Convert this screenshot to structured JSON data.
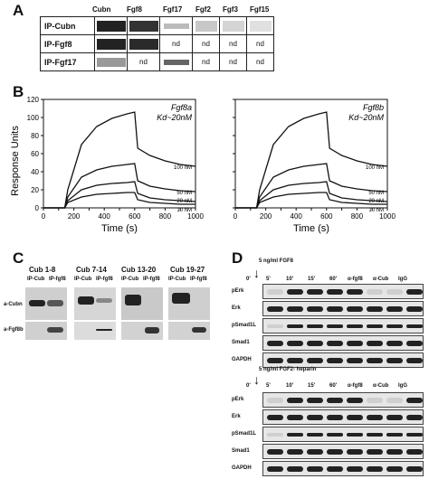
{
  "panelA": {
    "letter": "A",
    "columns": [
      "Cubn",
      "Fgf8",
      "Fgf17",
      "Fgf2",
      "Fgf3",
      "Fgf15"
    ],
    "rows": [
      {
        "label": "IP-Cubn",
        "cells": [
          "",
          "",
          "",
          "",
          "",
          ""
        ]
      },
      {
        "label": "IP-Fgf8",
        "cells": [
          "",
          "",
          "nd",
          "nd",
          "nd",
          "nd"
        ]
      },
      {
        "label": "IP-Fgf17",
        "cells": [
          "",
          "nd",
          "",
          "nd",
          "nd",
          "nd"
        ]
      }
    ]
  },
  "panelB": {
    "letter": "B",
    "ylabel": "Response Units",
    "charts": [
      {
        "title_line1": "Fgf8a",
        "title_line2": "Kd~20nM",
        "xlabel": "Time (s)"
      },
      {
        "title_line1": "Fgf8b",
        "title_line2": "Kd~20nM",
        "xlabel": "Time (s)"
      }
    ]
  },
  "chart_data": [
    {
      "type": "line",
      "title": "Fgf8a Kd~20nM",
      "xlabel": "Time (s)",
      "ylabel": "Response Units",
      "xlim": [
        0,
        1000
      ],
      "ylim": [
        0,
        120
      ],
      "xticks": [
        0,
        100,
        200,
        300,
        400,
        500,
        600,
        700,
        800,
        900,
        1000
      ],
      "yticks": [
        0,
        20,
        40,
        60,
        80,
        100,
        120
      ],
      "series": [
        {
          "name": "100 nM",
          "x": [
            0,
            140,
            160,
            250,
            350,
            450,
            550,
            600,
            620,
            700,
            800,
            900,
            1000
          ],
          "y": [
            0,
            0,
            20,
            70,
            90,
            99,
            104,
            106,
            66,
            58,
            52,
            48,
            46
          ]
        },
        {
          "name": "50 nM",
          "x": [
            0,
            140,
            160,
            250,
            350,
            450,
            550,
            600,
            620,
            700,
            800,
            900,
            1000
          ],
          "y": [
            0,
            0,
            12,
            34,
            42,
            46,
            48,
            49,
            30,
            24,
            21,
            19,
            18
          ]
        },
        {
          "name": "20 nM",
          "x": [
            0,
            140,
            160,
            250,
            350,
            450,
            550,
            600,
            620,
            700,
            800,
            900,
            1000
          ],
          "y": [
            0,
            0,
            8,
            20,
            25,
            27,
            28,
            29,
            16,
            11,
            9,
            8,
            7
          ]
        },
        {
          "name": "10 nM",
          "x": [
            0,
            140,
            160,
            250,
            350,
            450,
            550,
            600,
            620,
            700,
            800,
            900,
            1000
          ],
          "y": [
            0,
            0,
            6,
            12,
            15,
            16,
            17,
            17,
            9,
            6,
            5,
            4,
            4
          ]
        }
      ]
    },
    {
      "type": "line",
      "title": "Fgf8b Kd~20nM",
      "xlabel": "Time (s)",
      "ylabel": "",
      "xlim": [
        0,
        1000
      ],
      "ylim": [
        0,
        120
      ],
      "xticks": [
        0,
        100,
        200,
        300,
        400,
        500,
        600,
        700,
        800,
        900,
        1000
      ],
      "series": [
        {
          "name": "100 nM",
          "x": [
            0,
            140,
            160,
            250,
            350,
            450,
            550,
            600,
            620,
            700,
            800,
            900,
            1000
          ],
          "y": [
            0,
            0,
            20,
            70,
            90,
            99,
            104,
            106,
            66,
            58,
            52,
            48,
            46
          ]
        },
        {
          "name": "50 nM",
          "x": [
            0,
            140,
            160,
            250,
            350,
            450,
            550,
            600,
            620,
            700,
            800,
            900,
            1000
          ],
          "y": [
            0,
            0,
            12,
            34,
            42,
            46,
            48,
            49,
            30,
            24,
            21,
            19,
            18
          ]
        },
        {
          "name": "20 nM",
          "x": [
            0,
            140,
            160,
            250,
            350,
            450,
            550,
            600,
            620,
            700,
            800,
            900,
            1000
          ],
          "y": [
            0,
            0,
            8,
            20,
            25,
            27,
            28,
            29,
            16,
            11,
            9,
            8,
            7
          ]
        },
        {
          "name": "10 nM",
          "x": [
            0,
            140,
            160,
            250,
            350,
            450,
            550,
            600,
            620,
            700,
            800,
            900,
            1000
          ],
          "y": [
            0,
            0,
            6,
            12,
            15,
            16,
            17,
            17,
            9,
            6,
            5,
            4,
            4
          ]
        }
      ]
    }
  ],
  "panelC": {
    "letter": "C",
    "groups": [
      "Cub 1-8",
      "Cub 7-14",
      "Cub 13-20",
      "Cub 19-27"
    ],
    "lane_labels": [
      "IP-Cub",
      "IP-fgf8"
    ],
    "row_labels": [
      "a-Cubn",
      "a-Fgf8b"
    ]
  },
  "panelD": {
    "letter": "D",
    "top": {
      "treatment": "5 ng/ml FGF8",
      "lanes": [
        "0'",
        "5'",
        "10'",
        "15'",
        "60'",
        "α-fgf8",
        "α-Cub",
        "IgG"
      ],
      "rows": [
        "pErk",
        "Erk",
        "pSmad1L",
        "Smad1",
        "GAPDH"
      ]
    },
    "bottom": {
      "treatment": "5 ng/ml FGF2- heparin",
      "lanes": [
        "0'",
        "5'",
        "10'",
        "15'",
        "60'",
        "α-fgf8",
        "α-Cub",
        "IgG"
      ],
      "rows": [
        "pErk",
        "Erk",
        "pSmad1L",
        "Smad1",
        "GAPDH"
      ]
    }
  }
}
